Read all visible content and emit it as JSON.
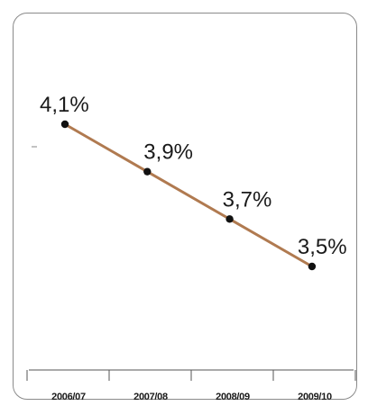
{
  "chart_data": {
    "type": "line",
    "title": "",
    "xlabel": "",
    "ylabel": "",
    "categories": [
      "2006/07",
      "2007/08",
      "2008/09",
      "2009/10"
    ],
    "series": [
      {
        "values": [
          4.1,
          3.9,
          3.7,
          3.5
        ],
        "labels": [
          "4,1%",
          "3,9%",
          "3,7%",
          "3,5%"
        ],
        "color": "#b07a50"
      }
    ],
    "marker_color": "#111111",
    "axis_color": "#555555",
    "ylim": [
      2.7,
      4.45
    ],
    "grid": false,
    "legend": "none"
  }
}
